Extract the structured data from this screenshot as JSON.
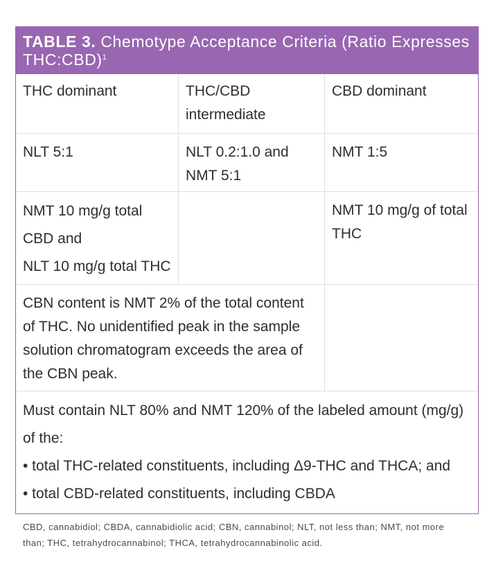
{
  "table": {
    "number_label": "TABLE 3.",
    "title": "Chemotype Acceptance Criteria (Ratio Expresses THC:CBD)",
    "title_sup": "1",
    "headers": [
      "THC dominant",
      "THC/CBD intermediate",
      "CBD dominant"
    ],
    "ratio_row": {
      "thc_dominant": "NLT 5:1",
      "intermediate_line1": "NLT 0.2:1.0 and",
      "intermediate_line2": "NMT 5:1",
      "cbd_dominant": "NMT 1:5"
    },
    "content_row": {
      "thc_line1": "NMT 10 mg/g total",
      "thc_line2": "CBD and",
      "thc_line3": "NLT 10 mg/g total THC",
      "intermediate": "",
      "cbd_line1": "NMT 10 mg/g of total",
      "cbd_line2": "THC"
    },
    "cbn_row": {
      "line1": "CBN content is NMT 2% of the total content",
      "line2": "of THC. No unidentified peak in the sample",
      "line3": "solution chromatogram exceeds the area of",
      "line4": "the CBN peak."
    },
    "labeled_amount": {
      "line1": "Must contain NLT 80% and NMT 120% of the labeled amount (mg/g)",
      "line2": "of the:",
      "bullet1": "• total THC-related constituents, including Δ9-THC and THCA; and",
      "bullet2": "• total CBD-related constituents, including CBDA"
    }
  },
  "footnote": {
    "line1": "CBD, cannabidiol; CBDA, cannabidiolic acid; CBN, cannabinol; NLT, not less than; NMT, not more",
    "line2": "than; THC, tetrahydrocannabinol; THCA, tetrahydrocannabinolic acid."
  },
  "colors": {
    "header_bg": "#9966b2",
    "border": "#9b62b5",
    "grid_line": "#e3dde8"
  }
}
